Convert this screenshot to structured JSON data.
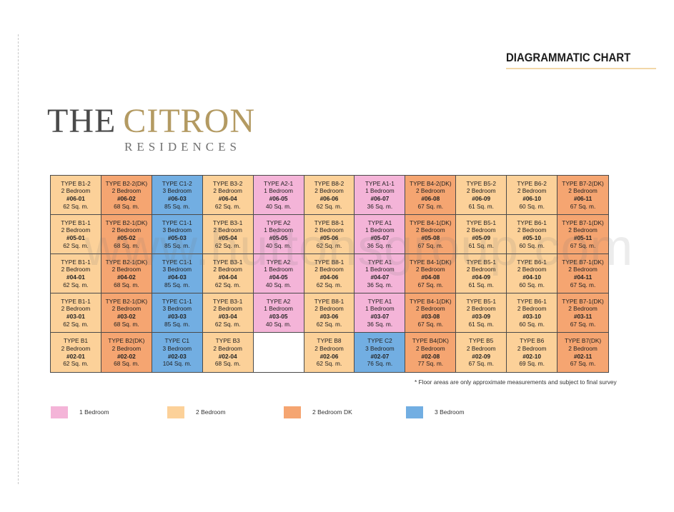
{
  "header": {
    "title": "DIAGRAMMATIC CHART"
  },
  "logo": {
    "line1_the": "THE",
    "line1_citron": "CITRON",
    "line2": "RESIDENCES"
  },
  "colors": {
    "1br": "#f4b4d8",
    "2br": "#fcd199",
    "2dk": "#f5a571",
    "3br": "#72aee2"
  },
  "rows": [
    [
      {
        "type": "TYPE B1-2",
        "bed": "2 Bedroom",
        "unit": "#06-01",
        "area": "62 Sq. m.",
        "cat": "2br"
      },
      {
        "type": "TYPE B2-2(DK)",
        "bed": "2 Bedroom",
        "unit": "#06-02",
        "area": "68 Sq. m.",
        "cat": "2dk"
      },
      {
        "type": "TYPE C1-2",
        "bed": "3 Bedroom",
        "unit": "#06-03",
        "area": "85 Sq. m.",
        "cat": "3br"
      },
      {
        "type": "TYPE B3-2",
        "bed": "2 Bedroom",
        "unit": "#06-04",
        "area": "62 Sq. m.",
        "cat": "2br"
      },
      {
        "type": "TYPE A2-1",
        "bed": "1 Bedroom",
        "unit": "#06-05",
        "area": "40 Sq. m.",
        "cat": "1br"
      },
      {
        "type": "TYPE B8-2",
        "bed": "2 Bedroom",
        "unit": "#06-06",
        "area": "62 Sq. m.",
        "cat": "2br"
      },
      {
        "type": "TYPE A1-1",
        "bed": "1 Bedroom",
        "unit": "#06-07",
        "area": "36 Sq. m.",
        "cat": "1br"
      },
      {
        "type": "TYPE B4-2(DK)",
        "bed": "2 Bedroom",
        "unit": "#06-08",
        "area": "67 Sq. m.",
        "cat": "2dk"
      },
      {
        "type": "TYPE B5-2",
        "bed": "2 Bedroom",
        "unit": "#06-09",
        "area": "61 Sq. m.",
        "cat": "2br"
      },
      {
        "type": "TYPE B6-2",
        "bed": "2 Bedroom",
        "unit": "#06-10",
        "area": "60 Sq. m.",
        "cat": "2br"
      },
      {
        "type": "TYPE B7-2(DK)",
        "bed": "2 Bedroom",
        "unit": "#06-11",
        "area": "67 Sq. m.",
        "cat": "2dk"
      }
    ],
    [
      {
        "type": "TYPE B1-1",
        "bed": "2 Bedroom",
        "unit": "#05-01",
        "area": "62 Sq. m.",
        "cat": "2br"
      },
      {
        "type": "TYPE B2-1(DK)",
        "bed": "2 Bedroom",
        "unit": "#05-02",
        "area": "68 Sq. m.",
        "cat": "2dk"
      },
      {
        "type": "TYPE C1-1",
        "bed": "3 Bedroom",
        "unit": "#05-03",
        "area": "85 Sq. m.",
        "cat": "3br"
      },
      {
        "type": "TYPE B3-1",
        "bed": "2 Bedroom",
        "unit": "#05-04",
        "area": "62 Sq. m.",
        "cat": "2br"
      },
      {
        "type": "TYPE A2",
        "bed": "1 Bedroom",
        "unit": "#05-05",
        "area": "40 Sq. m.",
        "cat": "1br"
      },
      {
        "type": "TYPE B8-1",
        "bed": "2 Bedroom",
        "unit": "#05-06",
        "area": "62 Sq. m.",
        "cat": "2br"
      },
      {
        "type": "TYPE A1",
        "bed": "1 Bedroom",
        "unit": "#05-07",
        "area": "36 Sq. m.",
        "cat": "1br"
      },
      {
        "type": "TYPE B4-1(DK)",
        "bed": "2 Bedroom",
        "unit": "#05-08",
        "area": "67 Sq. m.",
        "cat": "2dk"
      },
      {
        "type": "TYPE B5-1",
        "bed": "2 Bedroom",
        "unit": "#05-09",
        "area": "61 Sq. m.",
        "cat": "2br"
      },
      {
        "type": "TYPE B6-1",
        "bed": "2 Bedroom",
        "unit": "#05-10",
        "area": "60 Sq. m.",
        "cat": "2br"
      },
      {
        "type": "TYPE B7-1(DK)",
        "bed": "2 Bedroom",
        "unit": "#05-11",
        "area": "67 Sq. m.",
        "cat": "2dk"
      }
    ],
    [
      {
        "type": "TYPE B1-1",
        "bed": "2 Bedroom",
        "unit": "#04-01",
        "area": "62 Sq. m.",
        "cat": "2br"
      },
      {
        "type": "TYPE B2-1(DK)",
        "bed": "2 Bedroom",
        "unit": "#04-02",
        "area": "68 Sq. m.",
        "cat": "2dk"
      },
      {
        "type": "TYPE C1-1",
        "bed": "3 Bedroom",
        "unit": "#04-03",
        "area": "85 Sq. m.",
        "cat": "3br"
      },
      {
        "type": "TYPE B3-1",
        "bed": "2 Bedroom",
        "unit": "#04-04",
        "area": "62 Sq. m.",
        "cat": "2br"
      },
      {
        "type": "TYPE A2",
        "bed": "1 Bedroom",
        "unit": "#04-05",
        "area": "40 Sq. m.",
        "cat": "1br"
      },
      {
        "type": "TYPE B8-1",
        "bed": "2 Bedroom",
        "unit": "#04-06",
        "area": "62 Sq. m.",
        "cat": "2br"
      },
      {
        "type": "TYPE A1",
        "bed": "1 Bedroom",
        "unit": "#04-07",
        "area": "36 Sq. m.",
        "cat": "1br"
      },
      {
        "type": "TYPE B4-1(DK)",
        "bed": "2 Bedroom",
        "unit": "#04-08",
        "area": "67 Sq. m.",
        "cat": "2dk"
      },
      {
        "type": "TYPE B5-1",
        "bed": "2 Bedroom",
        "unit": "#04-09",
        "area": "61 Sq. m.",
        "cat": "2br"
      },
      {
        "type": "TYPE B6-1",
        "bed": "2 Bedroom",
        "unit": "#04-10",
        "area": "60 Sq. m.",
        "cat": "2br"
      },
      {
        "type": "TYPE B7-1(DK)",
        "bed": "2 Bedroom",
        "unit": "#04-11",
        "area": "67 Sq. m.",
        "cat": "2dk"
      }
    ],
    [
      {
        "type": "TYPE B1-1",
        "bed": "2 Bedroom",
        "unit": "#03-01",
        "area": "62 Sq. m.",
        "cat": "2br"
      },
      {
        "type": "TYPE B2-1(DK)",
        "bed": "2 Bedroom",
        "unit": "#03-02",
        "area": "68 Sq. m.",
        "cat": "2dk"
      },
      {
        "type": "TYPE C1-1",
        "bed": "3 Bedroom",
        "unit": "#03-03",
        "area": "85 Sq. m.",
        "cat": "3br"
      },
      {
        "type": "TYPE B3-1",
        "bed": "2 Bedroom",
        "unit": "#03-04",
        "area": "62 Sq. m.",
        "cat": "2br"
      },
      {
        "type": "TYPE A2",
        "bed": "1 Bedroom",
        "unit": "#03-05",
        "area": "40 Sq. m.",
        "cat": "1br"
      },
      {
        "type": "TYPE B8-1",
        "bed": "2 Bedroom",
        "unit": "#03-06",
        "area": "62 Sq. m.",
        "cat": "2br"
      },
      {
        "type": "TYPE A1",
        "bed": "1 Bedroom",
        "unit": "#03-07",
        "area": "36 Sq. m.",
        "cat": "1br"
      },
      {
        "type": "TYPE B4-1(DK)",
        "bed": "2 Bedroom",
        "unit": "#03-08",
        "area": "67 Sq. m.",
        "cat": "2dk"
      },
      {
        "type": "TYPE B5-1",
        "bed": "2 Bedroom",
        "unit": "#03-09",
        "area": "61 Sq. m.",
        "cat": "2br"
      },
      {
        "type": "TYPE B6-1",
        "bed": "2 Bedroom",
        "unit": "#03-10",
        "area": "60 Sq. m.",
        "cat": "2br"
      },
      {
        "type": "TYPE B7-1(DK)",
        "bed": "2 Bedroom",
        "unit": "#03-11",
        "area": "67 Sq. m.",
        "cat": "2dk"
      }
    ],
    [
      {
        "type": "TYPE B1",
        "bed": "2 Bedroom",
        "unit": "#02-01",
        "area": "62 Sq. m.",
        "cat": "2br"
      },
      {
        "type": "TYPE B2(DK)",
        "bed": "2 Bedroom",
        "unit": "#02-02",
        "area": "68 Sq. m.",
        "cat": "2dk"
      },
      {
        "type": "TYPE C1",
        "bed": "3 Bedroom",
        "unit": "#02-03",
        "area": "104 Sq. m.",
        "cat": "3br"
      },
      {
        "type": "TYPE B3",
        "bed": "2 Bedroom",
        "unit": "#02-04",
        "area": "68 Sq. m.",
        "cat": "2br"
      },
      {
        "type": "",
        "bed": "",
        "unit": "",
        "area": "",
        "cat": "empty"
      },
      {
        "type": "TYPE B8",
        "bed": "2 Bedroom",
        "unit": "#02-06",
        "area": "62 Sq. m.",
        "cat": "2br"
      },
      {
        "type": "TYPE C2",
        "bed": "3 Bedroom",
        "unit": "#02-07",
        "area": "76 Sq. m.",
        "cat": "3br"
      },
      {
        "type": "TYPE B4(DK)",
        "bed": "2 Bedroom",
        "unit": "#02-08",
        "area": "77 Sq. m.",
        "cat": "2dk"
      },
      {
        "type": "TYPE B5",
        "bed": "2 Bedroom",
        "unit": "#02-09",
        "area": "67 Sq. m.",
        "cat": "2br"
      },
      {
        "type": "TYPE B6",
        "bed": "2 Bedroom",
        "unit": "#02-10",
        "area": "69 Sq. m.",
        "cat": "2br"
      },
      {
        "type": "TYPE B7(DK)",
        "bed": "2 Bedroom",
        "unit": "#02-11",
        "area": "67 Sq. m.",
        "cat": "2dk"
      }
    ]
  ],
  "footnote": "* Floor areas are only approximate measurements and subject to final survey",
  "legend": [
    {
      "label": "1 Bedroom",
      "cat": "1br"
    },
    {
      "label": "2 Bedroom",
      "cat": "2br"
    },
    {
      "label": "2 Bedroom DK",
      "cat": "2dk"
    },
    {
      "label": "3 Bedroom",
      "cat": "3br"
    }
  ],
  "watermark": "www.huttonsgroup.com"
}
